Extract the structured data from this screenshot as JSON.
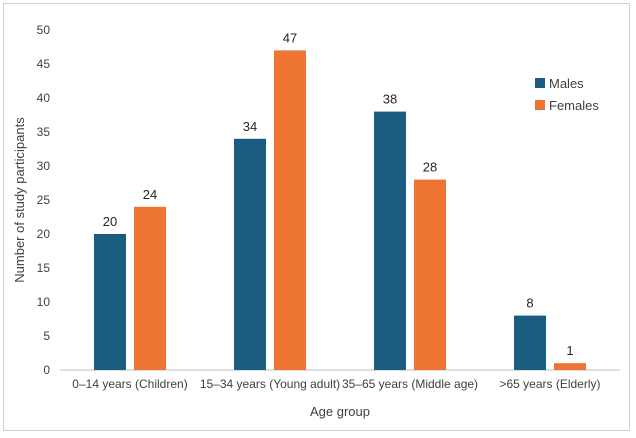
{
  "chart_data": {
    "type": "bar",
    "title": "",
    "xlabel": "Age group",
    "ylabel": "Number of study participants",
    "ylim": [
      0,
      50
    ],
    "ytick_step": 5,
    "grid": false,
    "legend_position": "top-right",
    "categories": [
      "0–14 years (Children)",
      "15–34 years (Young adult)",
      "35–65 years (Middle age)",
      ">65 years (Elderly)"
    ],
    "series": [
      {
        "name": "Males",
        "color": "#1a5c80",
        "values": [
          20,
          34,
          38,
          8
        ]
      },
      {
        "name": "Females",
        "color": "#ee7434",
        "values": [
          24,
          47,
          28,
          1
        ]
      }
    ]
  }
}
